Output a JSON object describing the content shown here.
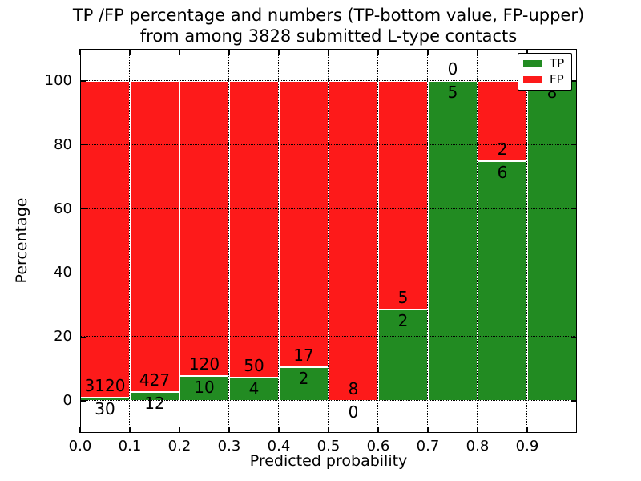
{
  "figure": {
    "title_line1": "TP /FP percentage and numbers (TP-bottom value, FP-upper)",
    "title_line2": "from among 3828 submitted L-type contacts"
  },
  "colors": {
    "tp": "#228b22",
    "fp": "#fd1a1a",
    "background": "#ffffff",
    "text": "#000000",
    "grid": "#000000"
  },
  "chart_data": {
    "type": "bar",
    "subtype": "stacked-percentage",
    "title": "TP /FP percentage and numbers (TP-bottom value, FP-upper)\nfrom among 3828 submitted L-type contacts",
    "xlabel": "Predicted probability",
    "ylabel": "Percentage",
    "total_contacts": 3828,
    "xlim": [
      0.0,
      1.0
    ],
    "ylim": [
      -10,
      110
    ],
    "xticks": [
      "0.0",
      "0.1",
      "0.2",
      "0.3",
      "0.4",
      "0.5",
      "0.6",
      "0.7",
      "0.8",
      "0.9"
    ],
    "yticks": [
      0,
      20,
      40,
      60,
      80,
      100
    ],
    "grid": true,
    "grid_style": "dotted",
    "legend": {
      "position": "upper right",
      "entries": [
        {
          "label": "TP",
          "color": "#228b22"
        },
        {
          "label": "FP",
          "color": "#fd1a1a"
        }
      ]
    },
    "annotation_note": "FP count printed above the TP/FP boundary, TP count below it",
    "bins": [
      {
        "x0": 0.0,
        "x1": 0.1,
        "tp": 30,
        "fp": 3120,
        "tp_pct": 0.95
      },
      {
        "x0": 0.1,
        "x1": 0.2,
        "tp": 12,
        "fp": 427,
        "tp_pct": 2.73
      },
      {
        "x0": 0.2,
        "x1": 0.3,
        "tp": 10,
        "fp": 120,
        "tp_pct": 7.69
      },
      {
        "x0": 0.3,
        "x1": 0.4,
        "tp": 4,
        "fp": 50,
        "tp_pct": 7.41
      },
      {
        "x0": 0.4,
        "x1": 0.5,
        "tp": 2,
        "fp": 17,
        "tp_pct": 10.53
      },
      {
        "x0": 0.5,
        "x1": 0.6,
        "tp": 0,
        "fp": 8,
        "tp_pct": 0.0
      },
      {
        "x0": 0.6,
        "x1": 0.7,
        "tp": 2,
        "fp": 5,
        "tp_pct": 28.57
      },
      {
        "x0": 0.7,
        "x1": 0.8,
        "tp": 5,
        "fp": 0,
        "tp_pct": 100.0
      },
      {
        "x0": 0.8,
        "x1": 0.9,
        "tp": 6,
        "fp": 2,
        "tp_pct": 75.0
      },
      {
        "x0": 0.9,
        "x1": 1.0,
        "tp": 8,
        "fp": 0,
        "tp_pct": 100.0
      }
    ]
  }
}
